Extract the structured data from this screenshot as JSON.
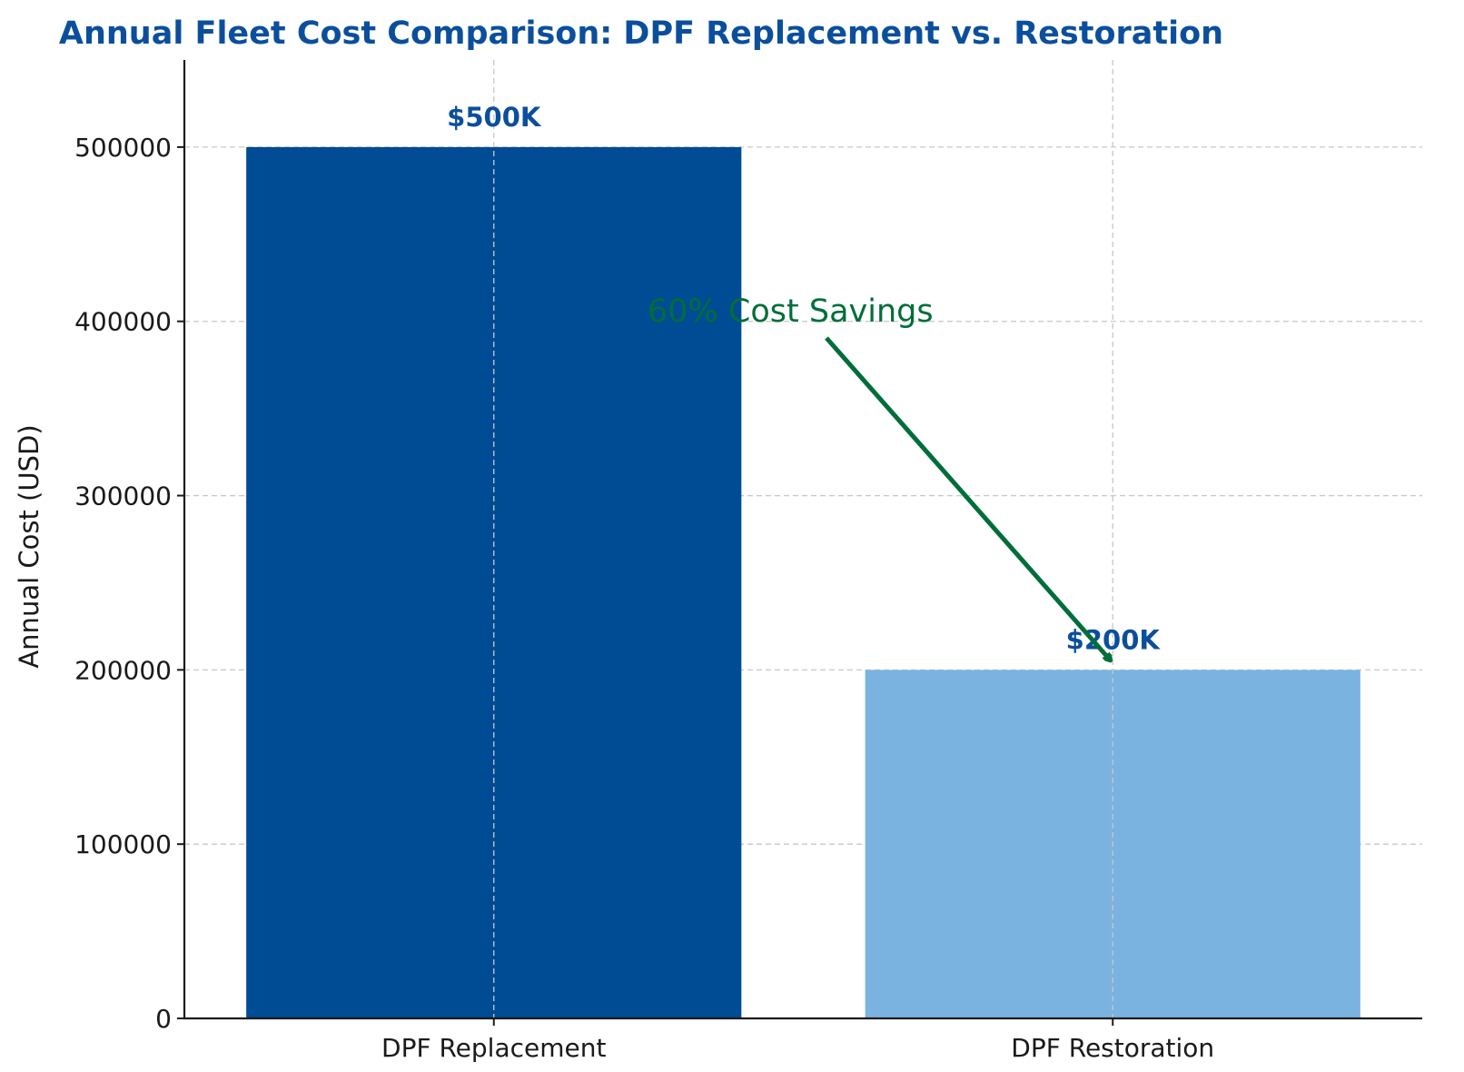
{
  "chart_data": {
    "type": "bar",
    "title": "Annual Fleet Cost Comparison: DPF Replacement vs. Restoration",
    "xlabel": "",
    "ylabel": "Annual Cost (USD)",
    "categories": [
      "DPF Replacement",
      "DPF Restoration"
    ],
    "values": [
      500000,
      200000
    ],
    "data_labels": [
      "$500K",
      "$200K"
    ],
    "bar_colors": [
      "#004c94",
      "#7ab3e0"
    ],
    "ylim": [
      0,
      550000
    ],
    "yticks": [
      0,
      100000,
      200000,
      300000,
      400000,
      500000
    ],
    "ytick_labels": [
      "0",
      "100000",
      "200000",
      "300000",
      "400000",
      "500000"
    ],
    "grid": true,
    "annotation": {
      "text": "60% Cost Savings",
      "target_category": "DPF Restoration",
      "target_value": 200000,
      "color": "#006e3a"
    },
    "colors": {
      "title": "#0b4f9c",
      "data_label": "#0b4f9c",
      "grid": "#c8c8c8",
      "axis": "#1a1a1a"
    }
  }
}
